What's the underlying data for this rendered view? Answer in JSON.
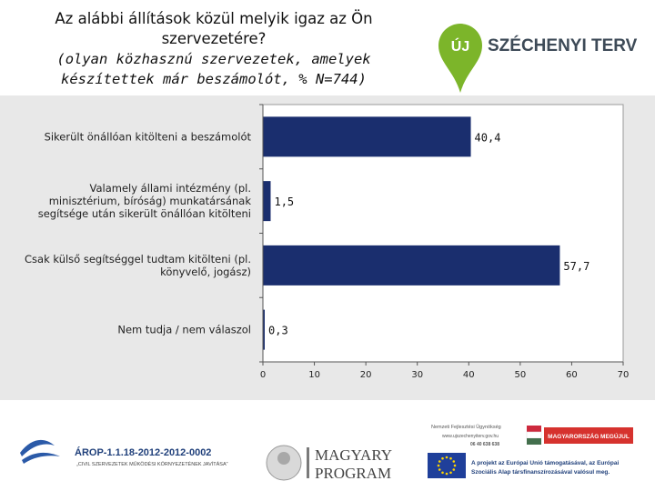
{
  "title": {
    "line1": "Az alábbi állítások közül melyik igaz az Ön",
    "line2": "szervezetére?",
    "line3": "(olyan közhasznú szervezetek, amelyek",
    "line4": "készítettek már beszámolót, % N=744)"
  },
  "logo": {
    "badge": "ÚJ",
    "text": "SZÉCHENYI TERV",
    "accent": "#7cb52a",
    "dark": "#3d4a57"
  },
  "chart_data": {
    "type": "bar",
    "orientation": "horizontal",
    "categories": [
      [
        "Sikerült önállóan kitölteni a beszámolót"
      ],
      [
        "Valamely állami intézmény (pl.",
        "minisztérium, bíróság) munkatársának",
        "segítsége után sikerült önállóan kitölteni"
      ],
      [
        "Csak külső segítséggel tudtam kitölteni (pl.",
        "könyvelő, jogász)"
      ],
      [
        "Nem tudja / nem válaszol"
      ]
    ],
    "values": [
      40.4,
      1.5,
      57.7,
      0.3
    ],
    "value_labels": [
      "40,4",
      "1,5",
      "57,7",
      "0,3"
    ],
    "xlim": [
      0,
      70
    ],
    "ticks": [
      0,
      10,
      20,
      30,
      40,
      50,
      60,
      70
    ],
    "bar_color": "#1a2e6e",
    "plot_bg": "#ffffff",
    "panel_bg": "#e8e8e8",
    "grid": false
  },
  "footer": {
    "arop_code": "ÁROP-1.1.18-2012-2012-0002",
    "arop_sub": "„CIVIL SZERVEZETEK MŰKÖDÉSI KÖRNYEZETÉNEK JAVÍTÁSA”",
    "magyary1": "MAGYARY",
    "magyary2": "PROGRAM",
    "nfu1": "Nemzeti Fejlesztési Ügynökség",
    "nfu2": "www.ujszechenyiterv.gov.hu",
    "nfu3": "06 40 638 638",
    "hu_flag_text": "MAGYARORSZÁG MEGÚJUL",
    "eu_text1": "A projekt az Európai Unió támogatásával, az Európai",
    "eu_text2": "Szociális Alap társfinanszírozásával valósul meg."
  }
}
